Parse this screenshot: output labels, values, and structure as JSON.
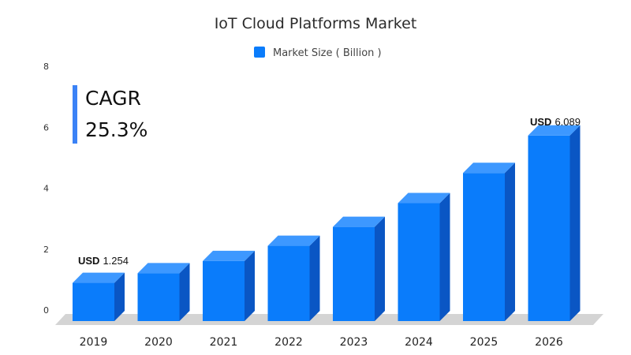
{
  "chart_data": {
    "type": "bar",
    "title": "IoT Cloud Platforms Market",
    "categories": [
      "2019",
      "2020",
      "2021",
      "2022",
      "2023",
      "2024",
      "2025",
      "2026"
    ],
    "series": [
      {
        "name": "Market Size ( Billion )",
        "values": [
          1.254,
          1.57,
          1.97,
          2.47,
          3.09,
          3.87,
          4.86,
          6.089
        ]
      }
    ],
    "ylim": [
      0,
      8
    ],
    "yticks": [
      "0",
      "2",
      "4",
      "6",
      "8"
    ],
    "grid": false,
    "legend": "top-center",
    "annotations": {
      "cagr_label": "CAGR",
      "cagr_value": "25.3%",
      "first_unit": "USD",
      "first_value": "1.254",
      "last_unit": "USD",
      "last_value": "6.089"
    },
    "colors": {
      "front": "#0a7cfb",
      "side": "#0a56c4",
      "top": "#3d98ff",
      "floor": "#d4d4d4",
      "accent": "#3b82f6"
    }
  }
}
